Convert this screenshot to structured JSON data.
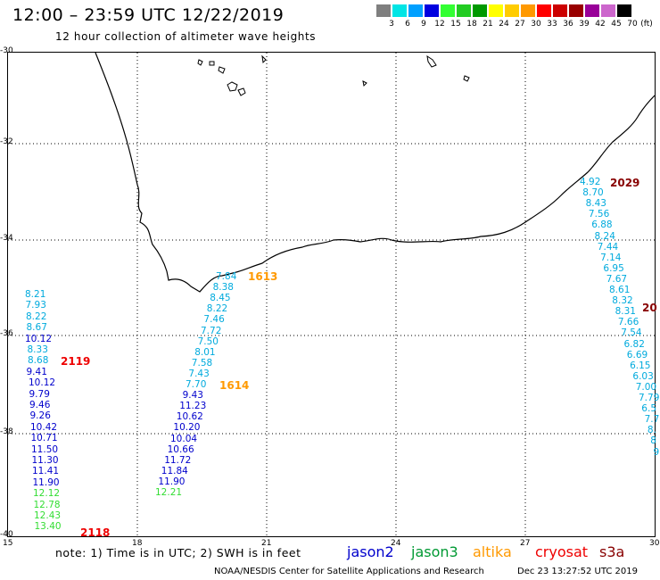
{
  "header": {
    "title": "12:00 – 23:59 UTC 12/22/2019",
    "subtitle": "12 hour collection of altimeter wave heights"
  },
  "legend": {
    "unit": "(ft)",
    "bins": [
      {
        "label": "3",
        "color": "#7f7f7f"
      },
      {
        "label": "6",
        "color": "#00e5e5"
      },
      {
        "label": "9",
        "color": "#00a0ff"
      },
      {
        "label": "12",
        "color": "#0000e0"
      },
      {
        "label": "15",
        "color": "#33ff33"
      },
      {
        "label": "18",
        "color": "#22cc22"
      },
      {
        "label": "21",
        "color": "#009900"
      },
      {
        "label": "24",
        "color": "#ffff00"
      },
      {
        "label": "27",
        "color": "#ffcc00"
      },
      {
        "label": "30",
        "color": "#ff9900"
      },
      {
        "label": "33",
        "color": "#ff0000"
      },
      {
        "label": "36",
        "color": "#cc0000"
      },
      {
        "label": "39",
        "color": "#990000"
      },
      {
        "label": "42",
        "color": "#990099"
      },
      {
        "label": "45",
        "color": "#cc66cc"
      },
      {
        "label": "70",
        "color": "#000000"
      }
    ]
  },
  "axes": {
    "lat_labels": [
      "-30",
      "-32",
      "-34",
      "-36",
      "-38",
      "-40"
    ],
    "lon_labels": [
      "15",
      "18",
      "21",
      "24",
      "27",
      "30"
    ]
  },
  "colors": {
    "jason2": "#0000cc",
    "jason3": "#009933",
    "altika": "#ff9900",
    "cryosat": "#ee0000",
    "s3a": "#880000",
    "cyan": "#00aadd",
    "lightgreen": "#33dd33"
  },
  "tracks": {
    "west": {
      "pass_label": "2119",
      "pass_label2": "2118",
      "values": [
        {
          "v": "8.21",
          "c": "cyan"
        },
        {
          "v": "7.93",
          "c": "cyan"
        },
        {
          "v": "8.22",
          "c": "cyan"
        },
        {
          "v": "8.67",
          "c": "cyan"
        },
        {
          "v": "10.12",
          "c": "jason2"
        },
        {
          "v": "8.33",
          "c": "cyan"
        },
        {
          "v": "8.68",
          "c": "cyan"
        },
        {
          "v": "9.41",
          "c": "jason2"
        },
        {
          "v": "10.12",
          "c": "jason2"
        },
        {
          "v": "9.79",
          "c": "jason2"
        },
        {
          "v": "9.46",
          "c": "jason2"
        },
        {
          "v": "9.26",
          "c": "jason2"
        },
        {
          "v": "10.42",
          "c": "jason2"
        },
        {
          "v": "10.71",
          "c": "jason2"
        },
        {
          "v": "11.50",
          "c": "jason2"
        },
        {
          "v": "11.30",
          "c": "jason2"
        },
        {
          "v": "11.41",
          "c": "jason2"
        },
        {
          "v": "11.90",
          "c": "jason2"
        },
        {
          "v": "12.12",
          "c": "lightgreen"
        },
        {
          "v": "12.78",
          "c": "lightgreen"
        },
        {
          "v": "12.43",
          "c": "lightgreen"
        },
        {
          "v": "13.40",
          "c": "lightgreen"
        }
      ]
    },
    "middle": {
      "pass_label": "1613",
      "pass_label2": "1614",
      "values": [
        {
          "v": "7.84",
          "c": "cyan"
        },
        {
          "v": "8.38",
          "c": "cyan"
        },
        {
          "v": "8.45",
          "c": "cyan"
        },
        {
          "v": "8.22",
          "c": "cyan"
        },
        {
          "v": "7.46",
          "c": "cyan"
        },
        {
          "v": "7.72",
          "c": "cyan"
        },
        {
          "v": "7.50",
          "c": "cyan"
        },
        {
          "v": "8.01",
          "c": "cyan"
        },
        {
          "v": "7.58",
          "c": "cyan"
        },
        {
          "v": "7.43",
          "c": "cyan"
        },
        {
          "v": "7.70",
          "c": "cyan"
        },
        {
          "v": "9.43",
          "c": "jason2"
        },
        {
          "v": "11.23",
          "c": "jason2"
        },
        {
          "v": "10.62",
          "c": "jason2"
        },
        {
          "v": "10.20",
          "c": "jason2"
        },
        {
          "v": "10.04",
          "c": "jason2"
        },
        {
          "v": "10.66",
          "c": "jason2"
        },
        {
          "v": "11.72",
          "c": "jason2"
        },
        {
          "v": "11.84",
          "c": "jason2"
        },
        {
          "v": "11.90",
          "c": "jason2"
        },
        {
          "v": "12.21",
          "c": "lightgreen"
        }
      ]
    },
    "east": {
      "pass_label": "2029",
      "pass_label2": "20",
      "values": [
        {
          "v": "4.92",
          "c": "cyan"
        },
        {
          "v": "8.70",
          "c": "cyan"
        },
        {
          "v": "8.43",
          "c": "cyan"
        },
        {
          "v": "7.56",
          "c": "cyan"
        },
        {
          "v": "6.88",
          "c": "cyan"
        },
        {
          "v": "8.24",
          "c": "cyan"
        },
        {
          "v": "7.44",
          "c": "cyan"
        },
        {
          "v": "7.14",
          "c": "cyan"
        },
        {
          "v": "6.95",
          "c": "cyan"
        },
        {
          "v": "7.67",
          "c": "cyan"
        },
        {
          "v": "8.61",
          "c": "cyan"
        },
        {
          "v": "8.32",
          "c": "cyan"
        },
        {
          "v": "8.31",
          "c": "cyan"
        },
        {
          "v": "7.66",
          "c": "cyan"
        },
        {
          "v": "7.54",
          "c": "cyan"
        },
        {
          "v": "6.82",
          "c": "cyan"
        },
        {
          "v": "6.69",
          "c": "cyan"
        },
        {
          "v": "6.15",
          "c": "cyan"
        },
        {
          "v": "6.03",
          "c": "cyan"
        },
        {
          "v": "7.00",
          "c": "cyan"
        },
        {
          "v": "7.79",
          "c": "cyan"
        },
        {
          "v": "6.5",
          "c": "cyan"
        },
        {
          "v": "7.7",
          "c": "cyan"
        },
        {
          "v": "8.",
          "c": "cyan"
        },
        {
          "v": "8",
          "c": "cyan"
        },
        {
          "v": "9",
          "c": "cyan"
        }
      ]
    }
  },
  "footer": {
    "note": "note: 1) Time is in UTC; 2) SWH is in feet",
    "satellites": [
      {
        "name": "jason2",
        "color": "#0000cc"
      },
      {
        "name": "jason3",
        "color": "#009933"
      },
      {
        "name": "altika",
        "color": "#ff9900"
      },
      {
        "name": "cryosat",
        "color": "#ee0000"
      },
      {
        "name": "s3a",
        "color": "#880000"
      }
    ],
    "credit": "NOAA/NESDIS Center for Satellite Applications and Research",
    "timestamp": "Dec 23 13:27:52 UTC 2019"
  }
}
